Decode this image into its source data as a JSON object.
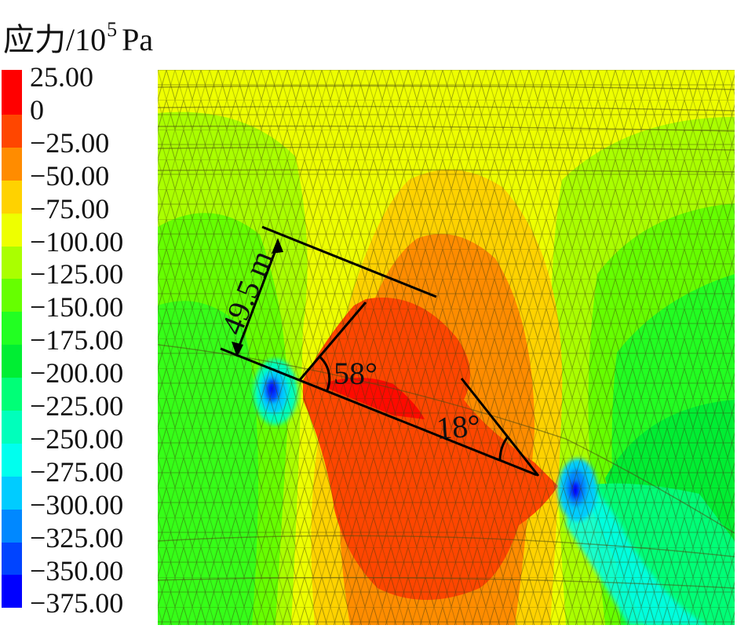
{
  "title": {
    "main": "应力/10",
    "superscript": "5",
    "unit": "Pa"
  },
  "legend": {
    "labels": [
      "25.00",
      "0",
      "−25.00",
      "−50.00",
      "−75.00",
      "−100.00",
      "−125.00",
      "−150.00",
      "−175.00",
      "−200.00",
      "−225.00",
      "−250.00",
      "−275.00",
      "−300.00",
      "−325.00",
      "−350.00",
      "−375.00"
    ],
    "colors": [
      "#ff0000",
      "#ff4600",
      "#ff8c00",
      "#ffd200",
      "#eeff00",
      "#aaff00",
      "#66ff00",
      "#22ff22",
      "#00ee33",
      "#00ff77",
      "#00ffbb",
      "#00ffee",
      "#00ccff",
      "#0088ff",
      "#0044ff",
      "#0000ff"
    ]
  },
  "annotations": {
    "distance": "49.5 m",
    "angle_left": "58°",
    "angle_right": "18°"
  },
  "chart_data": {
    "type": "heatmap",
    "title": "应力/10^5 Pa",
    "subtitle": "Finite-element stress contour around inclined cavity",
    "colorbar": {
      "unit": "10^5 Pa",
      "ticks": [
        25,
        0,
        -25,
        -50,
        -75,
        -100,
        -125,
        -150,
        -175,
        -200,
        -225,
        -250,
        -275,
        -300,
        -325,
        -350,
        -375
      ],
      "range": [
        -375,
        25
      ]
    },
    "regions": [
      {
        "zone": "top band",
        "value_range": [
          -100,
          -75
        ],
        "color": "yellow"
      },
      {
        "zone": "upper-left and upper-right lobes",
        "value_range": [
          -125,
          -100
        ],
        "color": "yellow-green"
      },
      {
        "zone": "left/right mid flanks",
        "value_range": [
          -175,
          -125
        ],
        "color": "green"
      },
      {
        "zone": "central cavity body",
        "value_range": [
          -25,
          0
        ],
        "color": "red-orange"
      },
      {
        "zone": "upper cavity core",
        "value_range": [
          0,
          25
        ],
        "color": "red"
      },
      {
        "zone": "halo around cavity",
        "value_range": [
          -75,
          -25
        ],
        "color": "orange"
      },
      {
        "zone": "left tip concentration",
        "value_range": [
          -375,
          -275
        ],
        "color": "blue"
      },
      {
        "zone": "right tip concentration",
        "value_range": [
          -375,
          -250
        ],
        "color": "blue/cyan"
      },
      {
        "zone": "lower-right band",
        "value_range": [
          -250,
          -200
        ],
        "color": "cyan-green"
      }
    ],
    "annotations": [
      {
        "text": "49.5 m",
        "type": "dimension",
        "description": "perpendicular width between parallel lines"
      },
      {
        "text": "58°",
        "type": "angle",
        "at": "left end of inclined line"
      },
      {
        "text": "18°",
        "type": "angle",
        "at": "right end of inclined line"
      }
    ],
    "xlabel": "",
    "ylabel": "",
    "grid": false,
    "legend_position": "left"
  }
}
